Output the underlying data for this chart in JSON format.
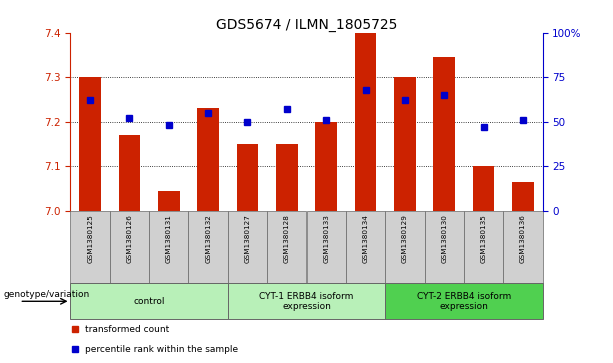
{
  "title": "GDS5674 / ILMN_1805725",
  "samples": [
    "GSM1380125",
    "GSM1380126",
    "GSM1380131",
    "GSM1380132",
    "GSM1380127",
    "GSM1380128",
    "GSM1380133",
    "GSM1380134",
    "GSM1380129",
    "GSM1380130",
    "GSM1380135",
    "GSM1380136"
  ],
  "red_values": [
    7.3,
    7.17,
    7.045,
    7.23,
    7.15,
    7.15,
    7.2,
    7.4,
    7.3,
    7.345,
    7.1,
    7.065
  ],
  "blue_values": [
    62,
    52,
    48,
    55,
    50,
    57,
    51,
    68,
    62,
    65,
    47,
    51
  ],
  "ylim_left": [
    7.0,
    7.4
  ],
  "ylim_right": [
    0,
    100
  ],
  "yticks_left": [
    7.0,
    7.1,
    7.2,
    7.3,
    7.4
  ],
  "yticks_right": [
    0,
    25,
    50,
    75,
    100
  ],
  "ytick_labels_right": [
    "0",
    "25",
    "50",
    "75",
    "100%"
  ],
  "grid_values": [
    7.1,
    7.2,
    7.3
  ],
  "bar_color": "#cc2200",
  "dot_color": "#0000cc",
  "bar_width": 0.55,
  "left_tick_color": "#cc2200",
  "right_tick_color": "#0000cc",
  "legend_red_label": "transformed count",
  "legend_blue_label": "percentile rank within the sample",
  "genotype_label": "genotype/variation",
  "bg_color_sample": "#d0d0d0",
  "group_color_light": "#b8f0b8",
  "group_color_dark": "#50d050",
  "group_border_color": "#666666",
  "group_configs": [
    {
      "indices": [
        0,
        1,
        2,
        3
      ],
      "label": "control",
      "color_key": "light"
    },
    {
      "indices": [
        4,
        5,
        6,
        7
      ],
      "label": "CYT-1 ERBB4 isoform\nexpression",
      "color_key": "light"
    },
    {
      "indices": [
        8,
        9,
        10,
        11
      ],
      "label": "CYT-2 ERBB4 isoform\nexpression",
      "color_key": "dark"
    }
  ]
}
